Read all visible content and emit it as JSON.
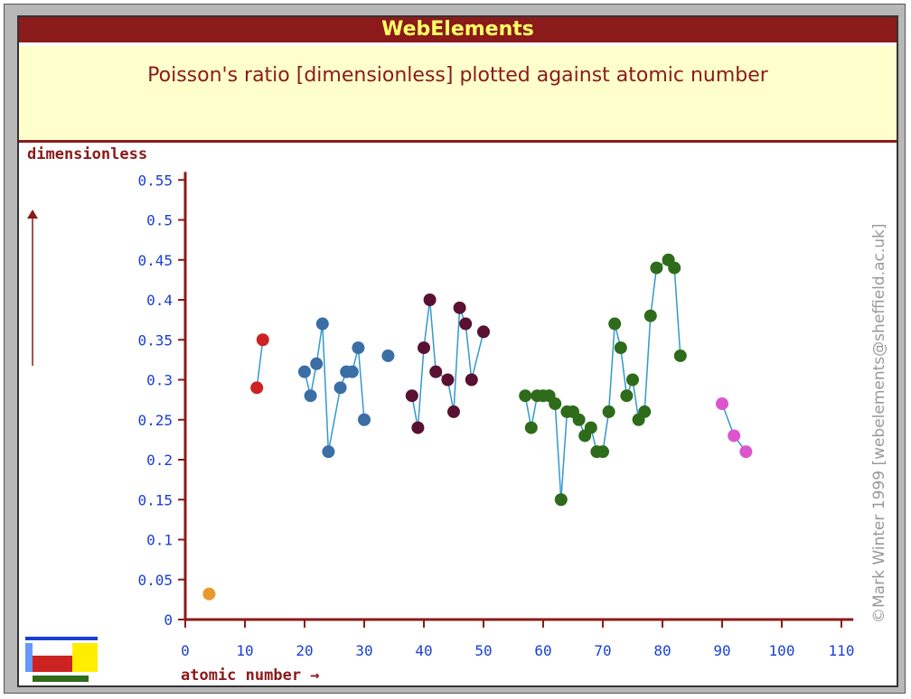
{
  "header": {
    "brand": "WebElements"
  },
  "chart_data": {
    "type": "scatter",
    "title": "Poisson's ratio [dimensionless] plotted against atomic number",
    "ylabel": "dimensionless",
    "xlabel": "atomic number →",
    "credit": "©Mark Winter 1999 [webelements@sheffield.ac.uk]",
    "xlim": [
      0,
      112
    ],
    "ylim": [
      0,
      0.56
    ],
    "x_ticks": [
      0,
      10,
      20,
      30,
      40,
      50,
      60,
      70,
      80,
      90,
      100,
      110
    ],
    "y_ticks": [
      {
        "v": 0,
        "label": "0"
      },
      {
        "v": 0.05,
        "label": "0.05"
      },
      {
        "v": 0.1,
        "label": "0.1"
      },
      {
        "v": 0.15,
        "label": "0.15"
      },
      {
        "v": 0.2,
        "label": "0.2"
      },
      {
        "v": 0.25,
        "label": "0.25"
      },
      {
        "v": 0.3,
        "label": "0.3"
      },
      {
        "v": 0.35,
        "label": "0.35"
      },
      {
        "v": 0.4,
        "label": "0.4"
      },
      {
        "v": 0.45,
        "label": "0.45"
      },
      {
        "v": 0.5,
        "label": "0.5"
      },
      {
        "v": 0.55,
        "label": "0.55"
      }
    ],
    "line_color": "#3399cc",
    "series": [
      {
        "color": "#e89a2a",
        "points": [
          [
            4,
            0.032
          ]
        ]
      },
      {
        "color": "#cc2222",
        "points": [
          [
            12,
            0.29
          ],
          [
            13,
            0.35
          ]
        ]
      },
      {
        "color": "#3a6ea5",
        "points": [
          [
            20,
            0.31
          ],
          [
            21,
            0.28
          ],
          [
            22,
            0.32
          ],
          [
            23,
            0.37
          ],
          [
            24,
            0.21
          ],
          [
            26,
            0.29
          ],
          [
            27,
            0.31
          ],
          [
            28,
            0.31
          ],
          [
            29,
            0.34
          ],
          [
            30,
            0.25
          ],
          [
            34,
            0.33
          ]
        ]
      },
      {
        "color": "#5a1030",
        "points": [
          [
            38,
            0.28
          ],
          [
            39,
            0.24
          ],
          [
            40,
            0.34
          ],
          [
            41,
            0.4
          ],
          [
            42,
            0.31
          ],
          [
            44,
            0.3
          ],
          [
            45,
            0.26
          ],
          [
            46,
            0.39
          ],
          [
            47,
            0.37
          ],
          [
            48,
            0.3
          ],
          [
            50,
            0.36
          ]
        ]
      },
      {
        "color": "#2e6b1a",
        "points": [
          [
            57,
            0.28
          ],
          [
            58,
            0.24
          ],
          [
            59,
            0.28
          ],
          [
            60,
            0.28
          ],
          [
            61,
            0.28
          ],
          [
            62,
            0.27
          ],
          [
            63,
            0.15
          ],
          [
            64,
            0.26
          ],
          [
            65,
            0.26
          ],
          [
            66,
            0.25
          ],
          [
            67,
            0.23
          ],
          [
            68,
            0.24
          ],
          [
            69,
            0.21
          ],
          [
            70,
            0.21
          ],
          [
            71,
            0.26
          ],
          [
            72,
            0.37
          ],
          [
            73,
            0.34
          ],
          [
            74,
            0.28
          ],
          [
            75,
            0.3
          ],
          [
            76,
            0.25
          ],
          [
            77,
            0.26
          ],
          [
            78,
            0.38
          ],
          [
            79,
            0.44
          ],
          [
            81,
            0.45
          ],
          [
            82,
            0.44
          ],
          [
            83,
            0.33
          ]
        ]
      },
      {
        "color": "#dd55cc",
        "points": [
          [
            90,
            0.27
          ],
          [
            92,
            0.23
          ],
          [
            94,
            0.21
          ]
        ]
      }
    ]
  }
}
